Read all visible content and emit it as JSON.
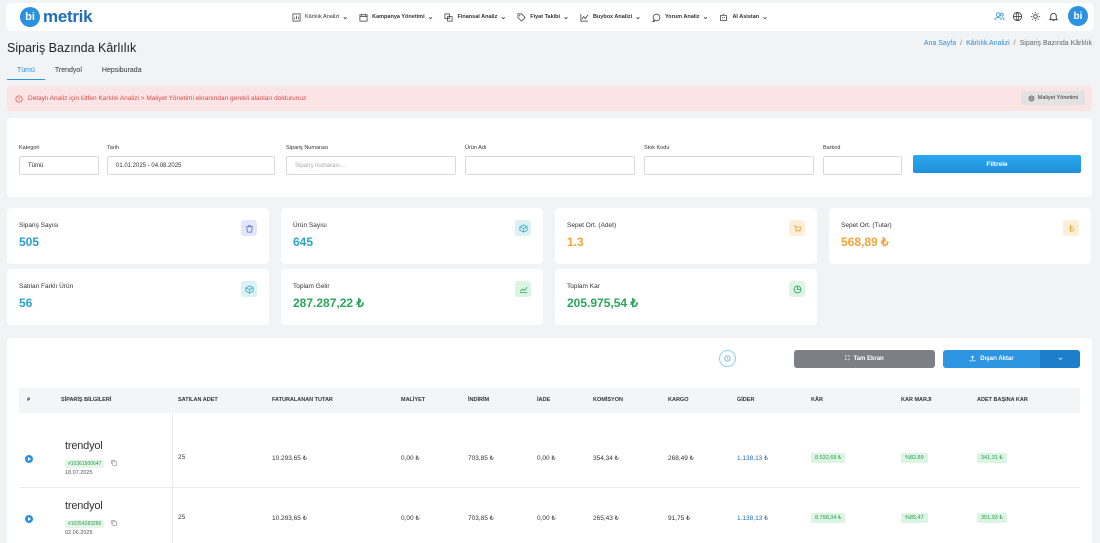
{
  "app": {
    "logo_letter": "bi",
    "logo_text": "metrik",
    "avatar": "bi"
  },
  "nav": {
    "items": [
      {
        "label": "Kârlılık Analizi",
        "icon": "chart-bar-icon"
      },
      {
        "label": "Kampanya Yönetimi",
        "icon": "calendar-icon"
      },
      {
        "label": "Finansal Analiz",
        "icon": "finance-icon"
      },
      {
        "label": "Fiyat Takibi",
        "icon": "tag-icon"
      },
      {
        "label": "Buybox Analizi",
        "icon": "trend-icon"
      },
      {
        "label": "Yorum Analiz",
        "icon": "comment-icon"
      },
      {
        "label": "AI Asistan",
        "icon": "robot-icon"
      }
    ]
  },
  "page": {
    "title": "Sipariş Bazında Kârlılık"
  },
  "breadcrumb": {
    "home": "Ana Sayfa",
    "section": "Kârlılık Analizi",
    "current": "Sipariş Bazında Kârlılık",
    "separator": "/"
  },
  "tabs": [
    "Tümü",
    "Trendyol",
    "Hepsiburada"
  ],
  "alert": {
    "text": "Detaylı Analiz için lütfen Karlılık Analizi > Maliyet Yönetimi ekranından gerekli alanları doldurunuz",
    "button": "Maliyet Yönetimi"
  },
  "filters": {
    "kategori": {
      "label": "Kategori",
      "value": "Tümü"
    },
    "tarih": {
      "label": "Tarih",
      "value": "01.01.2025 - 04.08.2025"
    },
    "siparis": {
      "label": "Sipariş Numarası",
      "placeholder": "Sipariş numarası..."
    },
    "urun": {
      "label": "Ürün Adı",
      "value": ""
    },
    "stok": {
      "label": "Stok Kodu",
      "value": ""
    },
    "barkod": {
      "label": "Barkod",
      "value": ""
    },
    "button": "Filtrele"
  },
  "stats": {
    "siparis": {
      "label": "Sipariş Sayısı",
      "value": "505",
      "color": "#2a9bd8"
    },
    "urun": {
      "label": "Ürün Sayısı",
      "value": "645",
      "color": "#2aa6c2"
    },
    "sepet_adet": {
      "label": "Sepet Ort. (Adet)",
      "value": "1.3",
      "color": "#f0a43a"
    },
    "sepet_tutar": {
      "label": "Sepet Ort. (Tutar)",
      "value": "568,89 ₺",
      "color": "#f0a43a"
    },
    "farkli": {
      "label": "Satılan Farklı Ürün",
      "value": "56",
      "color": "#2aa6c2"
    },
    "gelir": {
      "label": "Toplam Gelir",
      "value": "287.287,22 ₺",
      "color": "#2aa65e"
    },
    "kar": {
      "label": "Toplam Kar",
      "value": "205.975,54 ₺",
      "color": "#2aa65e"
    }
  },
  "toolbar": {
    "fullscreen": "Tam Ekran",
    "export": "Dışarı Aktar"
  },
  "table": {
    "headers": [
      "#",
      "SİPARİŞ BİLGİLERİ",
      "SATILAN ADET",
      "FATURALANAN TUTAR",
      "MALİYET",
      "İNDİRİM",
      "İADE",
      "KOMİSYON",
      "KARGO",
      "GİDER",
      "KÂR",
      "KAR MARJI",
      "ADET BAŞINA KAR"
    ],
    "rows": [
      {
        "brand": "trendyol",
        "order_no": "#10361500647",
        "date": "18.07.2025",
        "adet": "25",
        "tutar": "10.293,65 ₺",
        "maliyet": "0,00 ₺",
        "indirim": "703,85 ₺",
        "iade": "0,00 ₺",
        "komisyon": "354,34 ₺",
        "kargo": "268,49 ₺",
        "gider": "1.138,13 ₺",
        "kar": "8.532,68 ₺",
        "marj": "%82.89",
        "adet_kar": "341,31 ₺"
      },
      {
        "brand": "trendyol",
        "order_no": "#10254283286",
        "date": "02.06.2025",
        "adet": "25",
        "tutar": "10.293,65 ₺",
        "maliyet": "0,00 ₺",
        "indirim": "703,85 ₺",
        "iade": "0,00 ₺",
        "komisyon": "265,43 ₺",
        "kargo": "91,75 ₺",
        "gider": "1.138,13 ₺",
        "kar": "8.798,34 ₺",
        "marj": "%85.47",
        "adet_kar": "351,93 ₺"
      }
    ]
  }
}
